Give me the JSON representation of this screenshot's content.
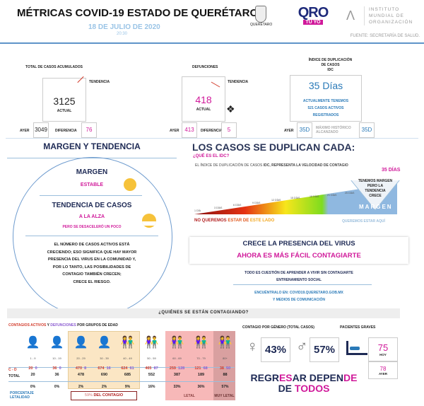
{
  "header": {
    "title": "MÉTRICAS COVID-19 ESTADO DE QUERÉTARO",
    "date": "18 DE JULIO DE 2020",
    "time": "20:30",
    "logo_queretaro": "QUERÉTARO",
    "logo_qro": "QRO",
    "logo_tuyo": "TÚ YO",
    "institute": [
      "INSTITUTO",
      "MUNDIAL DE",
      "ORGANIZACIÓN"
    ],
    "source": "FUENTE: SECRETARÍA DE SALUD."
  },
  "cases": {
    "label": "TOTAL DE CASOS ACUMULADOS",
    "trend_label": "TENDENCIA",
    "actual": "3125",
    "actual_label": "ACTUAL",
    "ayer_label": "AYER",
    "ayer": "3049",
    "diff_label": "DIFERENCIA",
    "diff": "76"
  },
  "deaths": {
    "label": "DEFUNCIONES",
    "trend_label": "TENDENCIA",
    "actual": "418",
    "actual_label": "ACTUAL",
    "ayer_label": "AYER",
    "ayer": "413",
    "diff_label": "DIFERENCIA",
    "diff": "5"
  },
  "idc": {
    "label1": "ÍNDICE DE DUPLICACIÓN",
    "label2": "DE CASOS",
    "label3": "IDC",
    "value": "35 Días",
    "line1": "ACTUALMENTE TENEMOS",
    "line2": "521 CASOS ACTIVOS",
    "line3": "REGISTRADOS",
    "ayer_label": "AYER",
    "ayer": "35D",
    "max_label1": "MÁXIMO HISTÓRICO",
    "max_label2": "ALCANZADO",
    "max": "35D"
  },
  "margin": {
    "title": "MARGEN Y TENDENCIA",
    "margen": "MARGEN",
    "margen_status": "ESTABLE",
    "tendencia": "TENDENCIA DE CASOS",
    "tendencia_status": "A LA ALZA",
    "tendencia_note": "PERO SE DESACELERÓ UN POCO",
    "body": [
      "EL NÚMERO DE CASOS ACTIVOS ESTÁ",
      "CRECIENDO; ESO SIGNIFICA QUE HAY MAYOR",
      "PRESENCIA DEL VIRUS EN LA COMUNIDAD Y,",
      "POR LO TANTO, LAS POSIBILIDADES DE",
      "CONTAGIO TAMBIÉN CRECEN;",
      "CRECE EL RIESGO."
    ]
  },
  "dup": {
    "title": "LOS CASOS SE DUPLICAN CADA:",
    "question": "¿QUÉ ES EL IDC?",
    "desc_a": "EL ÍNDICE DE DUPLICACIÓN DE CASOS ",
    "desc_b": "IDC, REPRESENTA LA VELOCIDAD DE CONTAGIO",
    "current": "35 DÍAS",
    "triangle": [
      "TENEMOS MARGEN",
      "PERO LA",
      "TENDENCIA",
      "CRECE"
    ],
    "scale": [
      "1 DÍA",
      "3 DÍAS",
      "6 DÍAS",
      "9 DÍAS",
      "12 DÍAS",
      "15 DÍAS",
      "18 DÍAS",
      "21 DÍAS",
      "25 DÍAS"
    ],
    "margen": "MARGEN",
    "bad_a": "NO QUEREMOS ",
    "bad_b": "ESTAR DE ",
    "bad_c": "ESTE LADO",
    "good": "QUEREMOS ESTAR AQUÍ"
  },
  "alert": {
    "line1": "CRECE LA PRESENCIA DEL VIRUS",
    "line2": "AHORA ES MÁS FÁCIL CONTAGIARTE",
    "note1": "TODO ES CUESTIÓN DE APRENDER A VIVIR SIN CONTAGIARTE",
    "note2": "ENTRENAMIENTO SOCIAL",
    "link1": "ENCUÉNTRALO EN: COVID19.QUERETARO.GOB.MX",
    "link2": "Y MEDIOS DE COMUNICACIÓN"
  },
  "who": {
    "title": "¿QUIÉNES SE ESTÁN CONTAGIANDO?",
    "sub_a": "CONTAGIOS ACTIVOS",
    "sub_y": " Y ",
    "sub_b": "DEFUNCIONES",
    "sub_c": " POR GRUPOS DE EDAD",
    "cd_label": "C - D",
    "total_label": "TOTAL",
    "pct_label1": "PORCENTAJE",
    "pct_label2": "LETALIDAD",
    "contagio_pct": "59%",
    "contagio_label": "DEL CONTAGIO",
    "letal": "LETAL",
    "muy_letal": "MUY LETAL",
    "groups": [
      {
        "age": "1 - 9",
        "c": "20",
        "d": "0",
        "total": "20",
        "pct": "0%"
      },
      {
        "age": "10 - 19",
        "c": "36",
        "d": "0",
        "total": "36",
        "pct": "0%"
      },
      {
        "age": "20 - 29",
        "c": "470",
        "d": "8",
        "total": "478",
        "pct": "2%"
      },
      {
        "age": "30 - 39",
        "c": "674",
        "d": "16",
        "total": "690",
        "pct": "2%"
      },
      {
        "age": "40 - 49",
        "c": "624",
        "d": "61",
        "total": "685",
        "pct": "9%"
      },
      {
        "age": "50 - 59",
        "c": "465",
        "d": "87",
        "total": "552",
        "pct": "16%"
      },
      {
        "age": "60 - 69",
        "c": "259",
        "d": "128",
        "total": "387",
        "pct": "33%"
      },
      {
        "age": "70 - 79",
        "c": "121",
        "d": "68",
        "total": "189",
        "pct": "36%"
      },
      {
        "age": "80+",
        "c": "38",
        "d": "50",
        "total": "88",
        "pct": "57%"
      }
    ]
  },
  "gender": {
    "title": "CONTAGIO POR GÉNERO (TOTAL CASOS)",
    "female": "43%",
    "male": "57%"
  },
  "severe": {
    "title": "PACIENTES GRAVES",
    "today": "75",
    "today_label": "HOY",
    "yesterday": "78",
    "yesterday_label": "AYER"
  },
  "slogan": {
    "a": "REGR",
    "b": "ES",
    "c": "AR DEPEN",
    "d": "DE",
    "e": "DE ",
    "f": "TODOS"
  },
  "colors": {
    "magenta": "#d0199a",
    "navy": "#1e2a55",
    "blue": "#2a7ab8",
    "red": "#d23a2a",
    "purple": "#8a5ad0"
  }
}
